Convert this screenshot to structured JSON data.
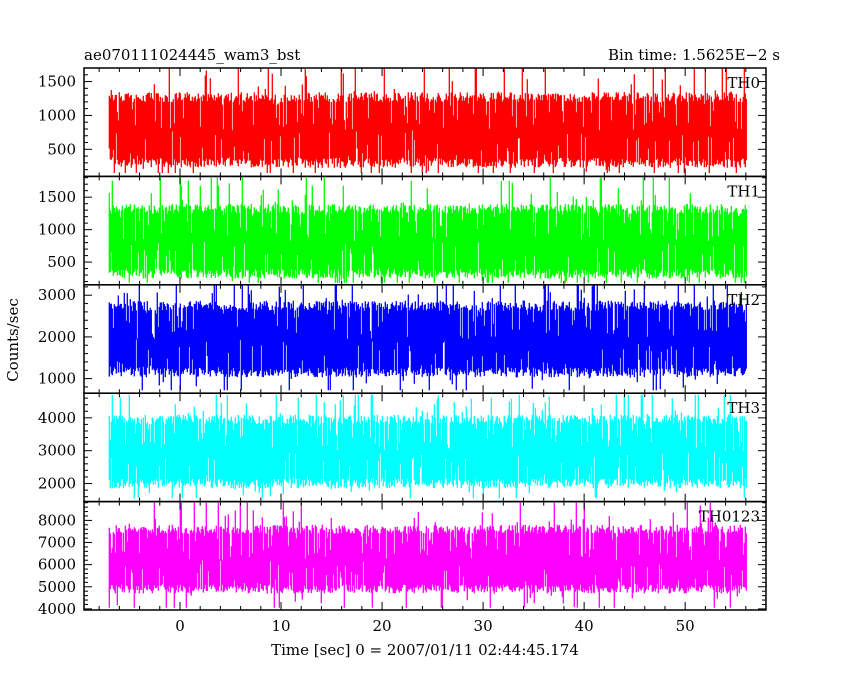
{
  "chart_data": {
    "type": "line",
    "title_left": "ae070111024445_wam3_bst",
    "title_right": "Bin time: 1.5625E−2 s",
    "xlabel": "Time [sec] 0 = 2007/01/11 02:44:45.174",
    "ylabel": "Counts/sec",
    "x_range": [
      0,
      56
    ],
    "xlim": [
      -9.5,
      58
    ],
    "x_ticks": [
      0,
      10,
      20,
      30,
      40,
      50
    ],
    "grid": false,
    "panels": [
      {
        "name": "TH0",
        "color": "#ff0000",
        "ylim": [
          100,
          1700
        ],
        "y_ticks": [
          500,
          1000,
          1500
        ],
        "mean": 780,
        "p5": 300,
        "p95": 1270,
        "min": 150,
        "max": 1700
      },
      {
        "name": "TH1",
        "color": "#00ff00",
        "ylim": [
          150,
          1820
        ],
        "y_ticks": [
          500,
          1000,
          1500
        ],
        "mean": 820,
        "p5": 320,
        "p95": 1320,
        "min": 180,
        "max": 1820
      },
      {
        "name": "TH2",
        "color": "#0000ff",
        "ylim": [
          650,
          3250
        ],
        "y_ticks": [
          1000,
          2000,
          3000
        ],
        "mean": 1950,
        "p5": 1150,
        "p95": 2750,
        "min": 720,
        "max": 3250
      },
      {
        "name": "TH3",
        "color": "#00ffff",
        "ylim": [
          1450,
          4750
        ],
        "y_ticks": [
          2000,
          3000,
          4000
        ],
        "mean": 3000,
        "p5": 2000,
        "p95": 3950,
        "min": 1550,
        "max": 4700
      },
      {
        "name": "TH0123",
        "color": "#ff00ff",
        "ylim": [
          3950,
          8850
        ],
        "y_ticks": [
          4000,
          5000,
          6000,
          7000,
          8000
        ],
        "mean": 6200,
        "p5": 4900,
        "p95": 7600,
        "min": 4050,
        "max": 8800
      }
    ]
  }
}
